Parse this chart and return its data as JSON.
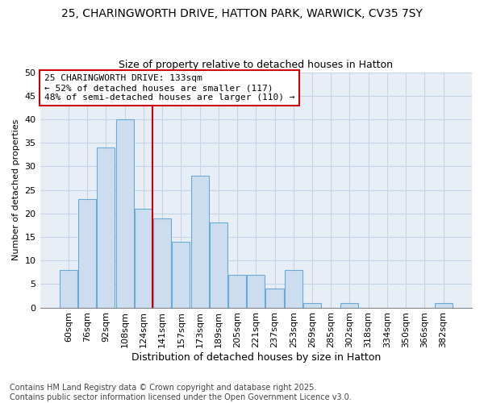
{
  "title1": "25, CHARINGWORTH DRIVE, HATTON PARK, WARWICK, CV35 7SY",
  "title2": "Size of property relative to detached houses in Hatton",
  "xlabel": "Distribution of detached houses by size in Hatton",
  "ylabel": "Number of detached properties",
  "categories": [
    "60sqm",
    "76sqm",
    "92sqm",
    "108sqm",
    "124sqm",
    "141sqm",
    "157sqm",
    "173sqm",
    "189sqm",
    "205sqm",
    "221sqm",
    "237sqm",
    "253sqm",
    "269sqm",
    "285sqm",
    "302sqm",
    "318sqm",
    "334sqm",
    "350sqm",
    "366sqm",
    "382sqm"
  ],
  "values": [
    8,
    23,
    34,
    40,
    21,
    19,
    14,
    28,
    18,
    7,
    7,
    4,
    8,
    1,
    0,
    1,
    0,
    0,
    0,
    0,
    1
  ],
  "bar_color": "#ccddf0",
  "bar_edge_color": "#6aaad4",
  "vline_x": 4.5,
  "vline_color": "#cc0000",
  "annotation_text": "25 CHARINGWORTH DRIVE: 133sqm\n← 52% of detached houses are smaller (117)\n48% of semi-detached houses are larger (110) →",
  "annotation_box_color": "#cc0000",
  "ylim": [
    0,
    50
  ],
  "yticks": [
    0,
    5,
    10,
    15,
    20,
    25,
    30,
    35,
    40,
    45,
    50
  ],
  "fig_bg_color": "#ffffff",
  "plot_bg_color": "#e8eef6",
  "grid_color": "#c5d5e8",
  "footer": "Contains HM Land Registry data © Crown copyright and database right 2025.\nContains public sector information licensed under the Open Government Licence v3.0.",
  "title1_fontsize": 10,
  "title2_fontsize": 9,
  "xlabel_fontsize": 9,
  "ylabel_fontsize": 8,
  "tick_fontsize": 8,
  "annotation_fontsize": 8,
  "footer_fontsize": 7
}
